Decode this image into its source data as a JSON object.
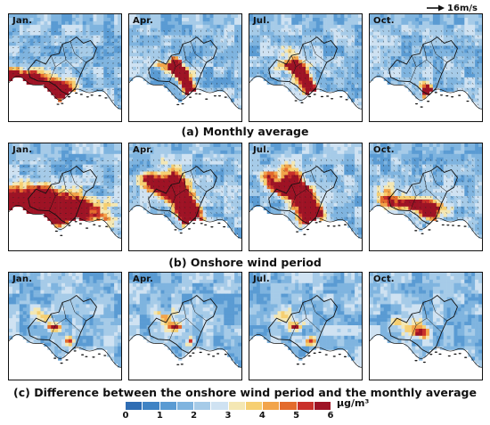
{
  "reference_vector": {
    "label": "16m/s"
  },
  "rows": [
    {
      "caption": "(a) Monthly average",
      "panels": [
        {
          "month": "Jan.",
          "hotspot": "strong-west-plume",
          "wind_vectors": true
        },
        {
          "month": "Apr.",
          "hotspot": "central-corridor",
          "wind_vectors": true
        },
        {
          "month": "Jul.",
          "hotspot": "central-corridor",
          "wind_vectors": true
        },
        {
          "month": "Oct.",
          "hotspot": "small-coastal",
          "wind_vectors": true
        }
      ]
    },
    {
      "caption": "(b) Onshore wind period",
      "panels": [
        {
          "month": "Jan.",
          "hotspot": "very-strong-west-plume",
          "wind_vectors": true
        },
        {
          "month": "Apr.",
          "hotspot": "strong-central-corridor",
          "wind_vectors": true
        },
        {
          "month": "Jul.",
          "hotspot": "strong-central-corridor",
          "wind_vectors": true
        },
        {
          "month": "Oct.",
          "hotspot": "moderate-coastal",
          "wind_vectors": true
        }
      ]
    },
    {
      "caption": "(c) Difference between the onshore wind period and the monthly average",
      "panels": [
        {
          "month": "Jan.",
          "hotspot": "weak-scattered",
          "wind_vectors": false
        },
        {
          "month": "Apr.",
          "hotspot": "weak-scattered",
          "wind_vectors": false
        },
        {
          "month": "Jul.",
          "hotspot": "weak-scattered",
          "wind_vectors": false
        },
        {
          "month": "Oct.",
          "hotspot": "weak-coastal",
          "wind_vectors": false
        }
      ]
    }
  ],
  "colorbar": {
    "ticks": [
      "0",
      "1",
      "2",
      "3",
      "4",
      "5",
      "6"
    ],
    "unit": "μg/m³",
    "range": [
      0,
      6
    ],
    "colors": [
      "#2f6db3",
      "#3f83c4",
      "#5a9bd3",
      "#7fb4df",
      "#a6cbe8",
      "#cfe2f2",
      "#f4e7b3",
      "#f6cf72",
      "#f2a44a",
      "#e36b2c",
      "#c9302a",
      "#9e1325"
    ]
  },
  "map_colors": {
    "ocean": "#ffffff",
    "boundary": "#111111",
    "vector": "#222222"
  }
}
